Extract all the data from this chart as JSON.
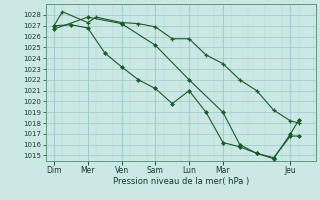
{
  "xlabel": "Pression niveau de la mer( hPa )",
  "bg_color": "#cce8e4",
  "grid_color_major": "#99cccc",
  "grid_color_minor": "#bbdddd",
  "line_color": "#1a5c28",
  "ylim": [
    1014.5,
    1029.0
  ],
  "yticks": [
    1015,
    1016,
    1017,
    1018,
    1019,
    1020,
    1021,
    1022,
    1023,
    1024,
    1025,
    1026,
    1027,
    1028
  ],
  "day_labels": [
    "Dim",
    "Mer",
    "Ven",
    "Sam",
    "Lun",
    "Mar",
    "Jeu"
  ],
  "day_x": [
    0,
    24,
    48,
    72,
    96,
    120,
    168
  ],
  "xlim": [
    -6,
    186
  ],
  "line1_x": [
    0,
    6,
    24,
    30,
    48,
    60,
    72,
    84,
    96,
    108,
    120,
    132,
    144,
    156,
    168,
    174
  ],
  "line1_y": [
    1027.0,
    1028.3,
    1027.3,
    1027.8,
    1027.3,
    1027.2,
    1026.9,
    1025.8,
    1025.8,
    1024.3,
    1023.5,
    1022.0,
    1021.0,
    1019.2,
    1018.2,
    1018.0
  ],
  "line2_x": [
    0,
    12,
    24,
    36,
    48,
    60,
    72,
    84,
    96,
    108,
    120,
    132,
    144,
    156,
    168,
    174
  ],
  "line2_y": [
    1027.0,
    1027.1,
    1026.8,
    1024.5,
    1023.2,
    1022.0,
    1021.2,
    1019.8,
    1021.0,
    1019.0,
    1016.2,
    1015.8,
    1015.2,
    1014.8,
    1016.8,
    1016.8
  ],
  "line3_x": [
    0,
    24,
    48,
    72,
    96,
    120,
    132,
    144,
    156,
    168,
    174
  ],
  "line3_y": [
    1026.7,
    1027.8,
    1027.2,
    1025.2,
    1022.0,
    1019.0,
    1016.0,
    1015.2,
    1014.7,
    1017.0,
    1018.3
  ]
}
